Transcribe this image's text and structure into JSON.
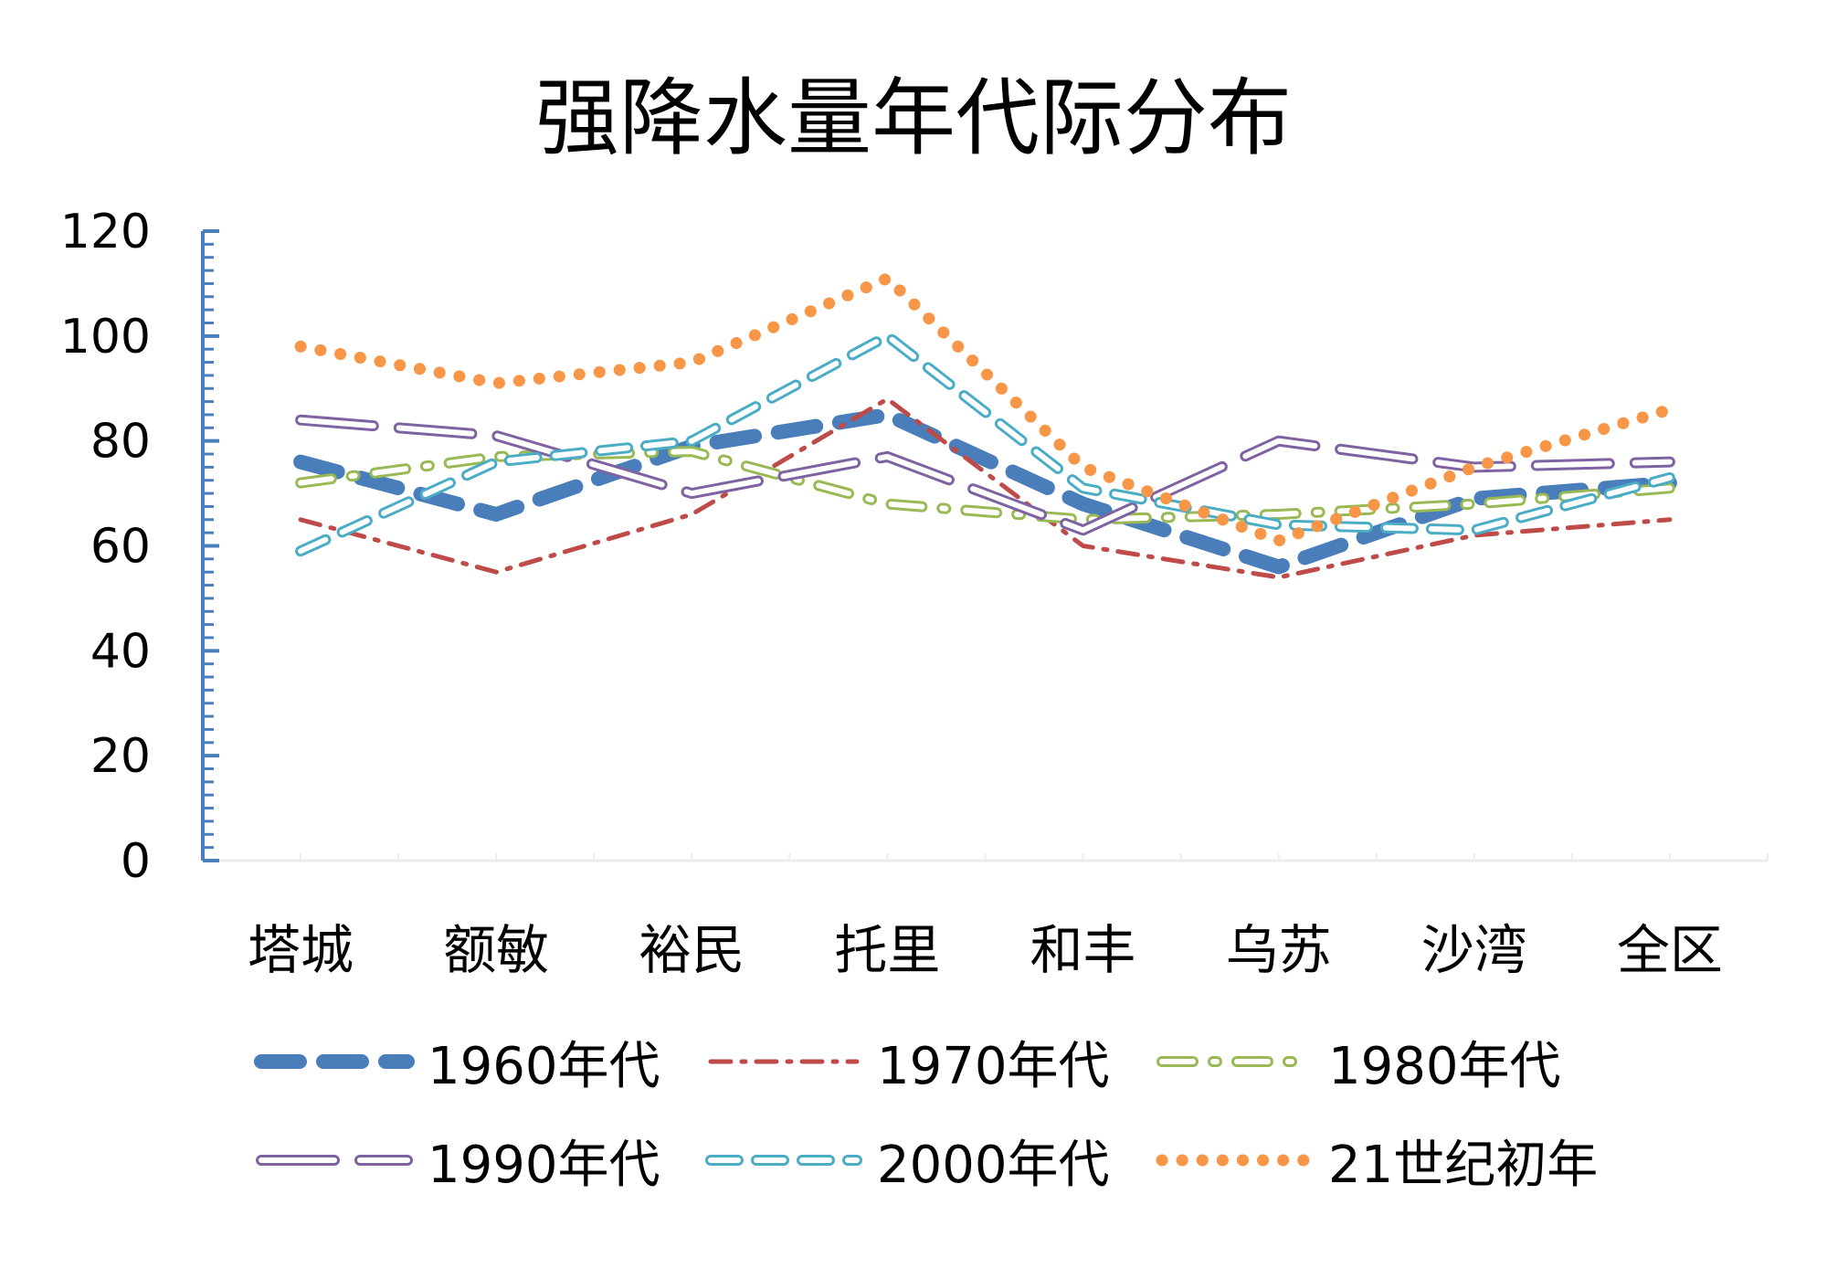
{
  "chart_data": {
    "type": "line",
    "title": "强降水量年代际分布",
    "xlabel": "",
    "ylabel": "",
    "categories": [
      "塔城",
      "额敏",
      "裕民",
      "托里",
      "和丰",
      "乌苏",
      "沙湾",
      "全区"
    ],
    "ylim": [
      0,
      120
    ],
    "yticks": [
      0,
      20,
      40,
      60,
      80,
      100,
      120
    ],
    "grid": false,
    "legend_position": "bottom",
    "series": [
      {
        "name": "1960年代",
        "values": [
          76,
          66,
          79,
          85,
          68,
          56,
          69,
          72
        ],
        "color": "#4A7EBB",
        "style": "long-dash-thick"
      },
      {
        "name": "1970年代",
        "values": [
          65,
          55,
          66,
          88,
          60,
          54,
          62,
          65
        ],
        "color": "#BE4B48",
        "style": "dash-dot"
      },
      {
        "name": "1980年代",
        "values": [
          72,
          77,
          78,
          68,
          65,
          66,
          68,
          71
        ],
        "color": "#98B954",
        "style": "outline-dash-dot"
      },
      {
        "name": "1990年代",
        "values": [
          84,
          81,
          70,
          77,
          63,
          80,
          75,
          76
        ],
        "color": "#7E62A1",
        "style": "outline-long-dash"
      },
      {
        "name": "2000年代",
        "values": [
          59,
          76,
          80,
          100,
          71,
          64,
          63,
          73
        ],
        "color": "#4BACC6",
        "style": "outline-dash"
      },
      {
        "name": "21世纪初年",
        "values": [
          98,
          91,
          95,
          111,
          75,
          61,
          75,
          86
        ],
        "color": "#F79646",
        "style": "round-dot"
      }
    ]
  }
}
